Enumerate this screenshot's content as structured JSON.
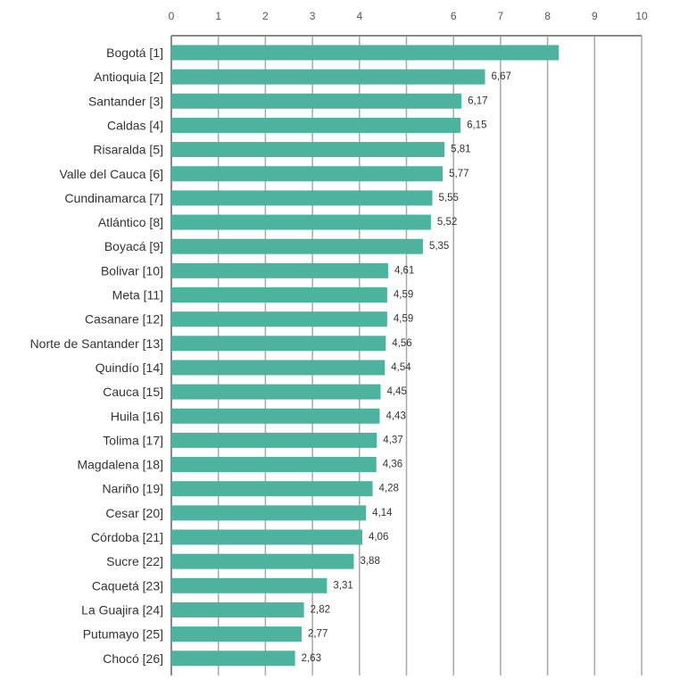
{
  "chart_data": {
    "type": "bar",
    "orientation": "horizontal",
    "xlim": [
      0,
      10
    ],
    "x_ticks": [
      "0",
      "1",
      "2",
      "3",
      "4",
      "6",
      "7",
      "8",
      "9",
      "10"
    ],
    "x_tick_values": [
      0,
      1,
      2,
      3,
      4,
      6,
      7,
      8,
      9,
      10
    ],
    "grid": true,
    "axis_position": "top",
    "bar_color": "#4db39e",
    "categories": [
      "Bogotá [1]",
      "Antioquia [2]",
      "Santander [3]",
      "Caldas [4]",
      "Risaralda [5]",
      "Valle del Cauca [6]",
      "Cundinamarca [7]",
      "Atlántico [8]",
      "Boyacá [9]",
      "Bolivar [10]",
      "Meta [11]",
      "Casanare [12]",
      "Norte de Santander [13]",
      "Quindío [14]",
      "Cauca [15]",
      "Huila [16]",
      "Tolima [17]",
      "Magdalena [18]",
      "Nariño [19]",
      "Cesar [20]",
      "Córdoba [21]",
      "Sucre [22]",
      "Caquetá [23]",
      "La Guajira [24]",
      "Putumayo [25]",
      "Chocó [26]"
    ],
    "values": [
      8.24,
      6.67,
      6.17,
      6.15,
      5.81,
      5.77,
      5.55,
      5.52,
      5.35,
      4.61,
      4.59,
      4.59,
      4.56,
      4.54,
      4.45,
      4.43,
      4.37,
      4.36,
      4.28,
      4.14,
      4.06,
      3.88,
      3.31,
      2.82,
      2.77,
      2.63
    ],
    "value_labels": [
      "",
      "6,67",
      "6,17",
      "6,15",
      "5,81",
      "5,77",
      "5,55",
      "5,52",
      "5,35",
      "4,61",
      "4,59",
      "4,59",
      "4,56",
      "4,54",
      "4,45",
      "4,43",
      "4,37",
      "4,36",
      "4,28",
      "4,14",
      "4,06",
      "3,88",
      "3,31",
      "2,82",
      "2,77",
      "2,63"
    ]
  }
}
